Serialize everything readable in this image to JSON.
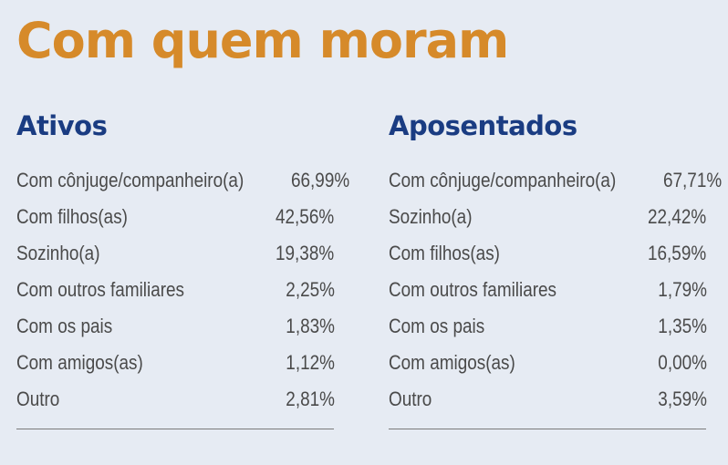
{
  "title": "Com quem moram",
  "ativos": {
    "heading": "Ativos",
    "rows": [
      {
        "label": "Com cônjuge/companheiro(a)",
        "value": "66,99%"
      },
      {
        "label": "Com filhos(as)",
        "value": "42,56%"
      },
      {
        "label": "Sozinho(a)",
        "value": "19,38%"
      },
      {
        "label": "Com outros familiares",
        "value": "2,25%"
      },
      {
        "label": "Com os pais",
        "value": "1,83%"
      },
      {
        "label": "Com amigos(as)",
        "value": "1,12%"
      },
      {
        "label": "Outro",
        "value": "2,81%"
      }
    ]
  },
  "aposentados": {
    "heading": "Aposentados",
    "rows": [
      {
        "label": "Com cônjuge/companheiro(a)",
        "value": "67,71%"
      },
      {
        "label": "Sozinho(a)",
        "value": "22,42%"
      },
      {
        "label": "Com filhos(as)",
        "value": "16,59%"
      },
      {
        "label": "Com outros familiares",
        "value": "1,79%"
      },
      {
        "label": "Com os pais",
        "value": "1,35%"
      },
      {
        "label": "Com amigos(as)",
        "value": "0,00%"
      },
      {
        "label": "Outro",
        "value": "3,59%"
      }
    ]
  },
  "colors": {
    "background": "#e6ebf3",
    "title": "#d68a2a",
    "heading": "#1a3c82",
    "text": "#4a4a4a",
    "divider": "#7a7a7a"
  }
}
